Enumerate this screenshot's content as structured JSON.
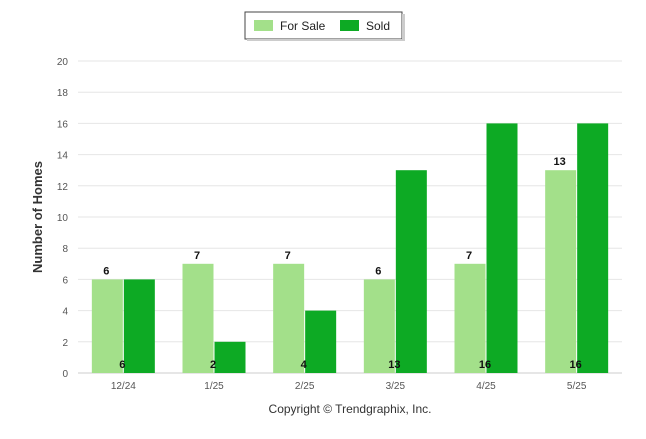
{
  "chart_data": {
    "type": "bar",
    "categories": [
      "12/24",
      "1/25",
      "2/25",
      "3/25",
      "4/25",
      "5/25"
    ],
    "series": [
      {
        "name": "For Sale",
        "values": [
          6,
          7,
          7,
          6,
          7,
          13
        ],
        "color": "#a3e08a"
      },
      {
        "name": "Sold",
        "values": [
          6,
          2,
          4,
          13,
          16,
          16
        ],
        "color": "#0daa24"
      }
    ],
    "title": "",
    "xlabel": "",
    "ylabel": "Number of Homes",
    "ylim": [
      0,
      20
    ],
    "yticks": [
      0,
      2,
      4,
      6,
      8,
      10,
      12,
      14,
      16,
      18,
      20
    ],
    "grid": true,
    "legend_position": "top-center",
    "data_labels": true
  },
  "footer": {
    "copyright": "Copyright © Trendgraphix, Inc."
  }
}
